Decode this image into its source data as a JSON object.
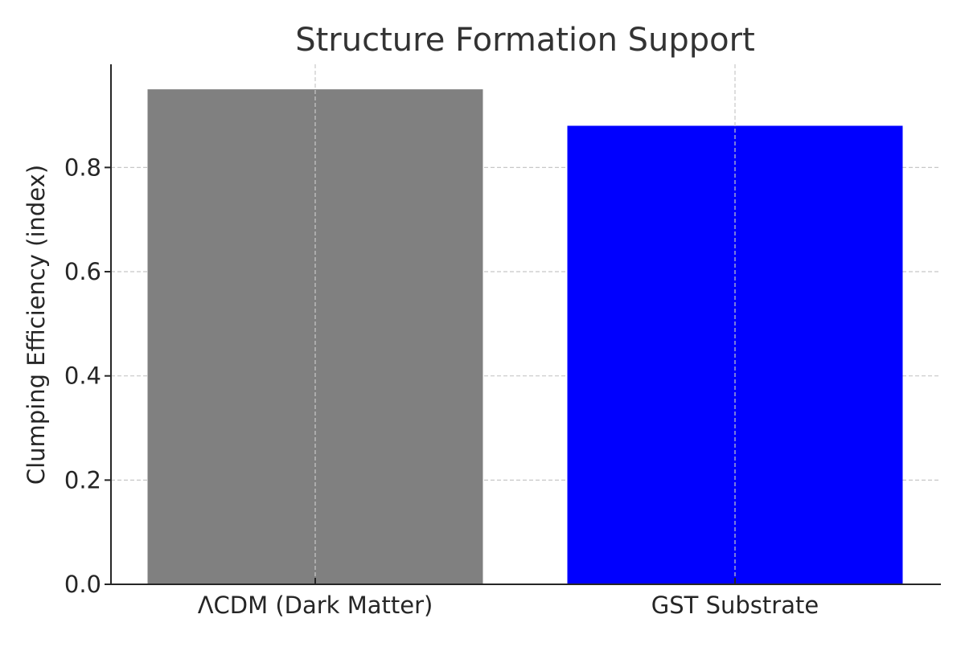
{
  "chart_data": {
    "type": "bar",
    "title": "Structure Formation Support",
    "xlabel": "",
    "ylabel": "Clumping Efficiency (index)",
    "categories": [
      "ΛCDM (Dark Matter)",
      "GST Substrate"
    ],
    "values": [
      0.95,
      0.88
    ],
    "colors": [
      "#808080",
      "#0000ff"
    ],
    "ylim": [
      0,
      0.998
    ],
    "yticks": [
      "0.0",
      "0.2",
      "0.4",
      "0.6",
      "0.8"
    ],
    "grid": true,
    "grid_color": "#c8c8c8",
    "axis_color": "#262626"
  }
}
